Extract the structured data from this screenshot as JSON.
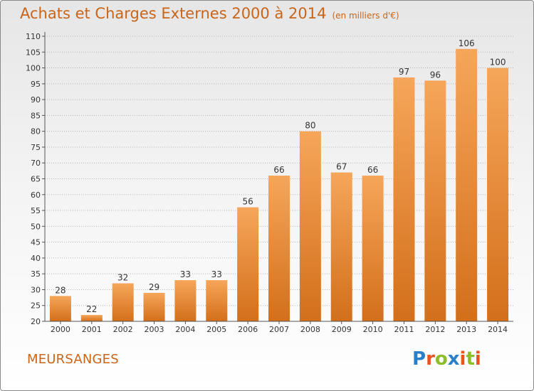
{
  "title": "Achats et Charges Externes 2000 à 2014",
  "subtitle": "(en milliers d'€)",
  "commune": "MEURSANGES",
  "logo": {
    "letters": [
      "P",
      "r",
      "o",
      "x",
      "i",
      "t",
      "i"
    ],
    "colors": [
      "#2b7fc8",
      "#e8531e",
      "#8cbd2a",
      "#2b7fc8",
      "#e8531e",
      "#8cbd2a",
      "#e8531e"
    ]
  },
  "colors": {
    "bar_light": "#f6a65a",
    "bar_dark": "#d36f1a",
    "accent": "#c8651a"
  },
  "chart_data": {
    "type": "bar",
    "categories": [
      "2000",
      "2001",
      "2002",
      "2003",
      "2004",
      "2005",
      "2006",
      "2007",
      "2008",
      "2009",
      "2010",
      "2011",
      "2012",
      "2013",
      "2014"
    ],
    "values": [
      28,
      22,
      32,
      29,
      33,
      33,
      56,
      66,
      80,
      67,
      66,
      97,
      96,
      106,
      100
    ],
    "ylim": [
      20,
      110
    ],
    "yticks": [
      20,
      25,
      30,
      35,
      40,
      45,
      50,
      55,
      60,
      65,
      70,
      75,
      80,
      85,
      90,
      95,
      100,
      105,
      110
    ],
    "grid": "horizontal-dotted",
    "title": "Achats et Charges Externes 2000 à 2014",
    "xlabel": "",
    "ylabel": ""
  }
}
